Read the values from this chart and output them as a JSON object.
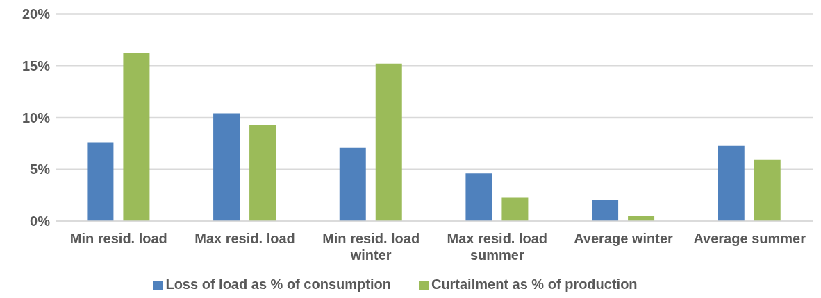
{
  "chart_data": {
    "type": "bar",
    "categories": [
      "Min resid. load",
      "Max resid. load",
      "Min resid. load winter",
      "Max resid. load summer",
      "Average winter",
      "Average summer"
    ],
    "series": [
      {
        "name": "Loss of load as % of consumption",
        "color": "#4f81bd",
        "values": [
          7.6,
          10.4,
          7.1,
          4.6,
          2.0,
          7.3
        ]
      },
      {
        "name": "Curtailment as % of production",
        "color": "#9bbb59",
        "values": [
          16.2,
          9.3,
          15.2,
          2.3,
          0.5,
          5.9
        ]
      }
    ],
    "ylim": [
      0,
      20
    ],
    "yticks": [
      {
        "value": 0,
        "label": "0%"
      },
      {
        "value": 5,
        "label": "5%"
      },
      {
        "value": 10,
        "label": "10%"
      },
      {
        "value": 15,
        "label": "15%"
      },
      {
        "value": 20,
        "label": "20%"
      }
    ],
    "grid": "y",
    "legend": "bottom"
  }
}
